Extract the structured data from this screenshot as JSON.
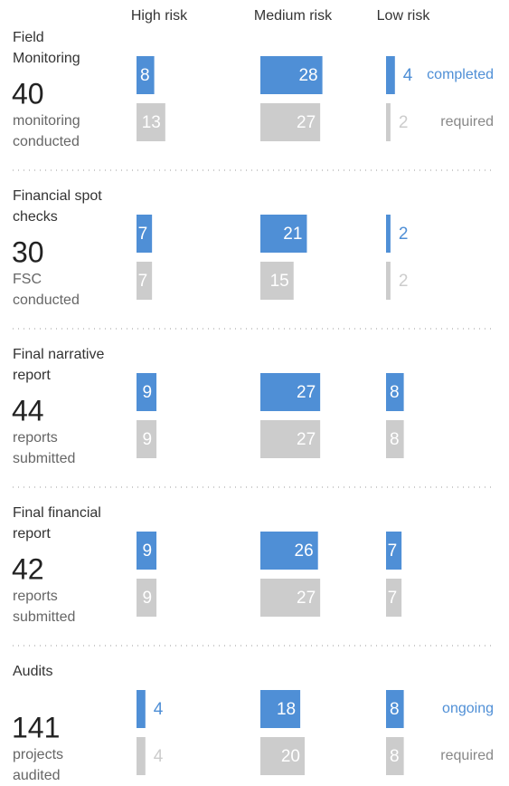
{
  "columns": [
    "High risk",
    "Medium risk",
    "Low risk"
  ],
  "chart_data": [
    {
      "type": "bar",
      "title": "Field Monitoring",
      "total": 40,
      "total_label": "monitoring conducted",
      "series": [
        {
          "name": "completed",
          "color": "#4f8fd6",
          "values": [
            8,
            28,
            4
          ]
        },
        {
          "name": "required",
          "color": "#cccccc",
          "values": [
            13,
            27,
            2
          ]
        }
      ]
    },
    {
      "type": "bar",
      "title": "Financial spot checks",
      "total": 30,
      "total_label": "FSC conducted",
      "series": [
        {
          "color": "#4f8fd6",
          "values": [
            7,
            21,
            2
          ]
        },
        {
          "color": "#cccccc",
          "values": [
            7,
            15,
            2
          ]
        }
      ]
    },
    {
      "type": "bar",
      "title": "Final narrative report",
      "total": 44,
      "total_label": "reports submitted",
      "series": [
        {
          "color": "#4f8fd6",
          "values": [
            9,
            27,
            8
          ]
        },
        {
          "color": "#cccccc",
          "values": [
            9,
            27,
            8
          ]
        }
      ]
    },
    {
      "type": "bar",
      "title": "Final financial report",
      "total": 42,
      "total_label": "reports submitted",
      "series": [
        {
          "color": "#4f8fd6",
          "values": [
            9,
            26,
            7
          ]
        },
        {
          "color": "#cccccc",
          "values": [
            9,
            27,
            7
          ]
        }
      ]
    },
    {
      "type": "bar",
      "title": "Audits",
      "total": 141,
      "total_label": "projects audited",
      "series": [
        {
          "name": "ongoing",
          "color": "#4f8fd6",
          "values": [
            4,
            18,
            8
          ]
        },
        {
          "name": "required",
          "color": "#cccccc",
          "values": [
            4,
            20,
            8
          ]
        }
      ]
    }
  ]
}
